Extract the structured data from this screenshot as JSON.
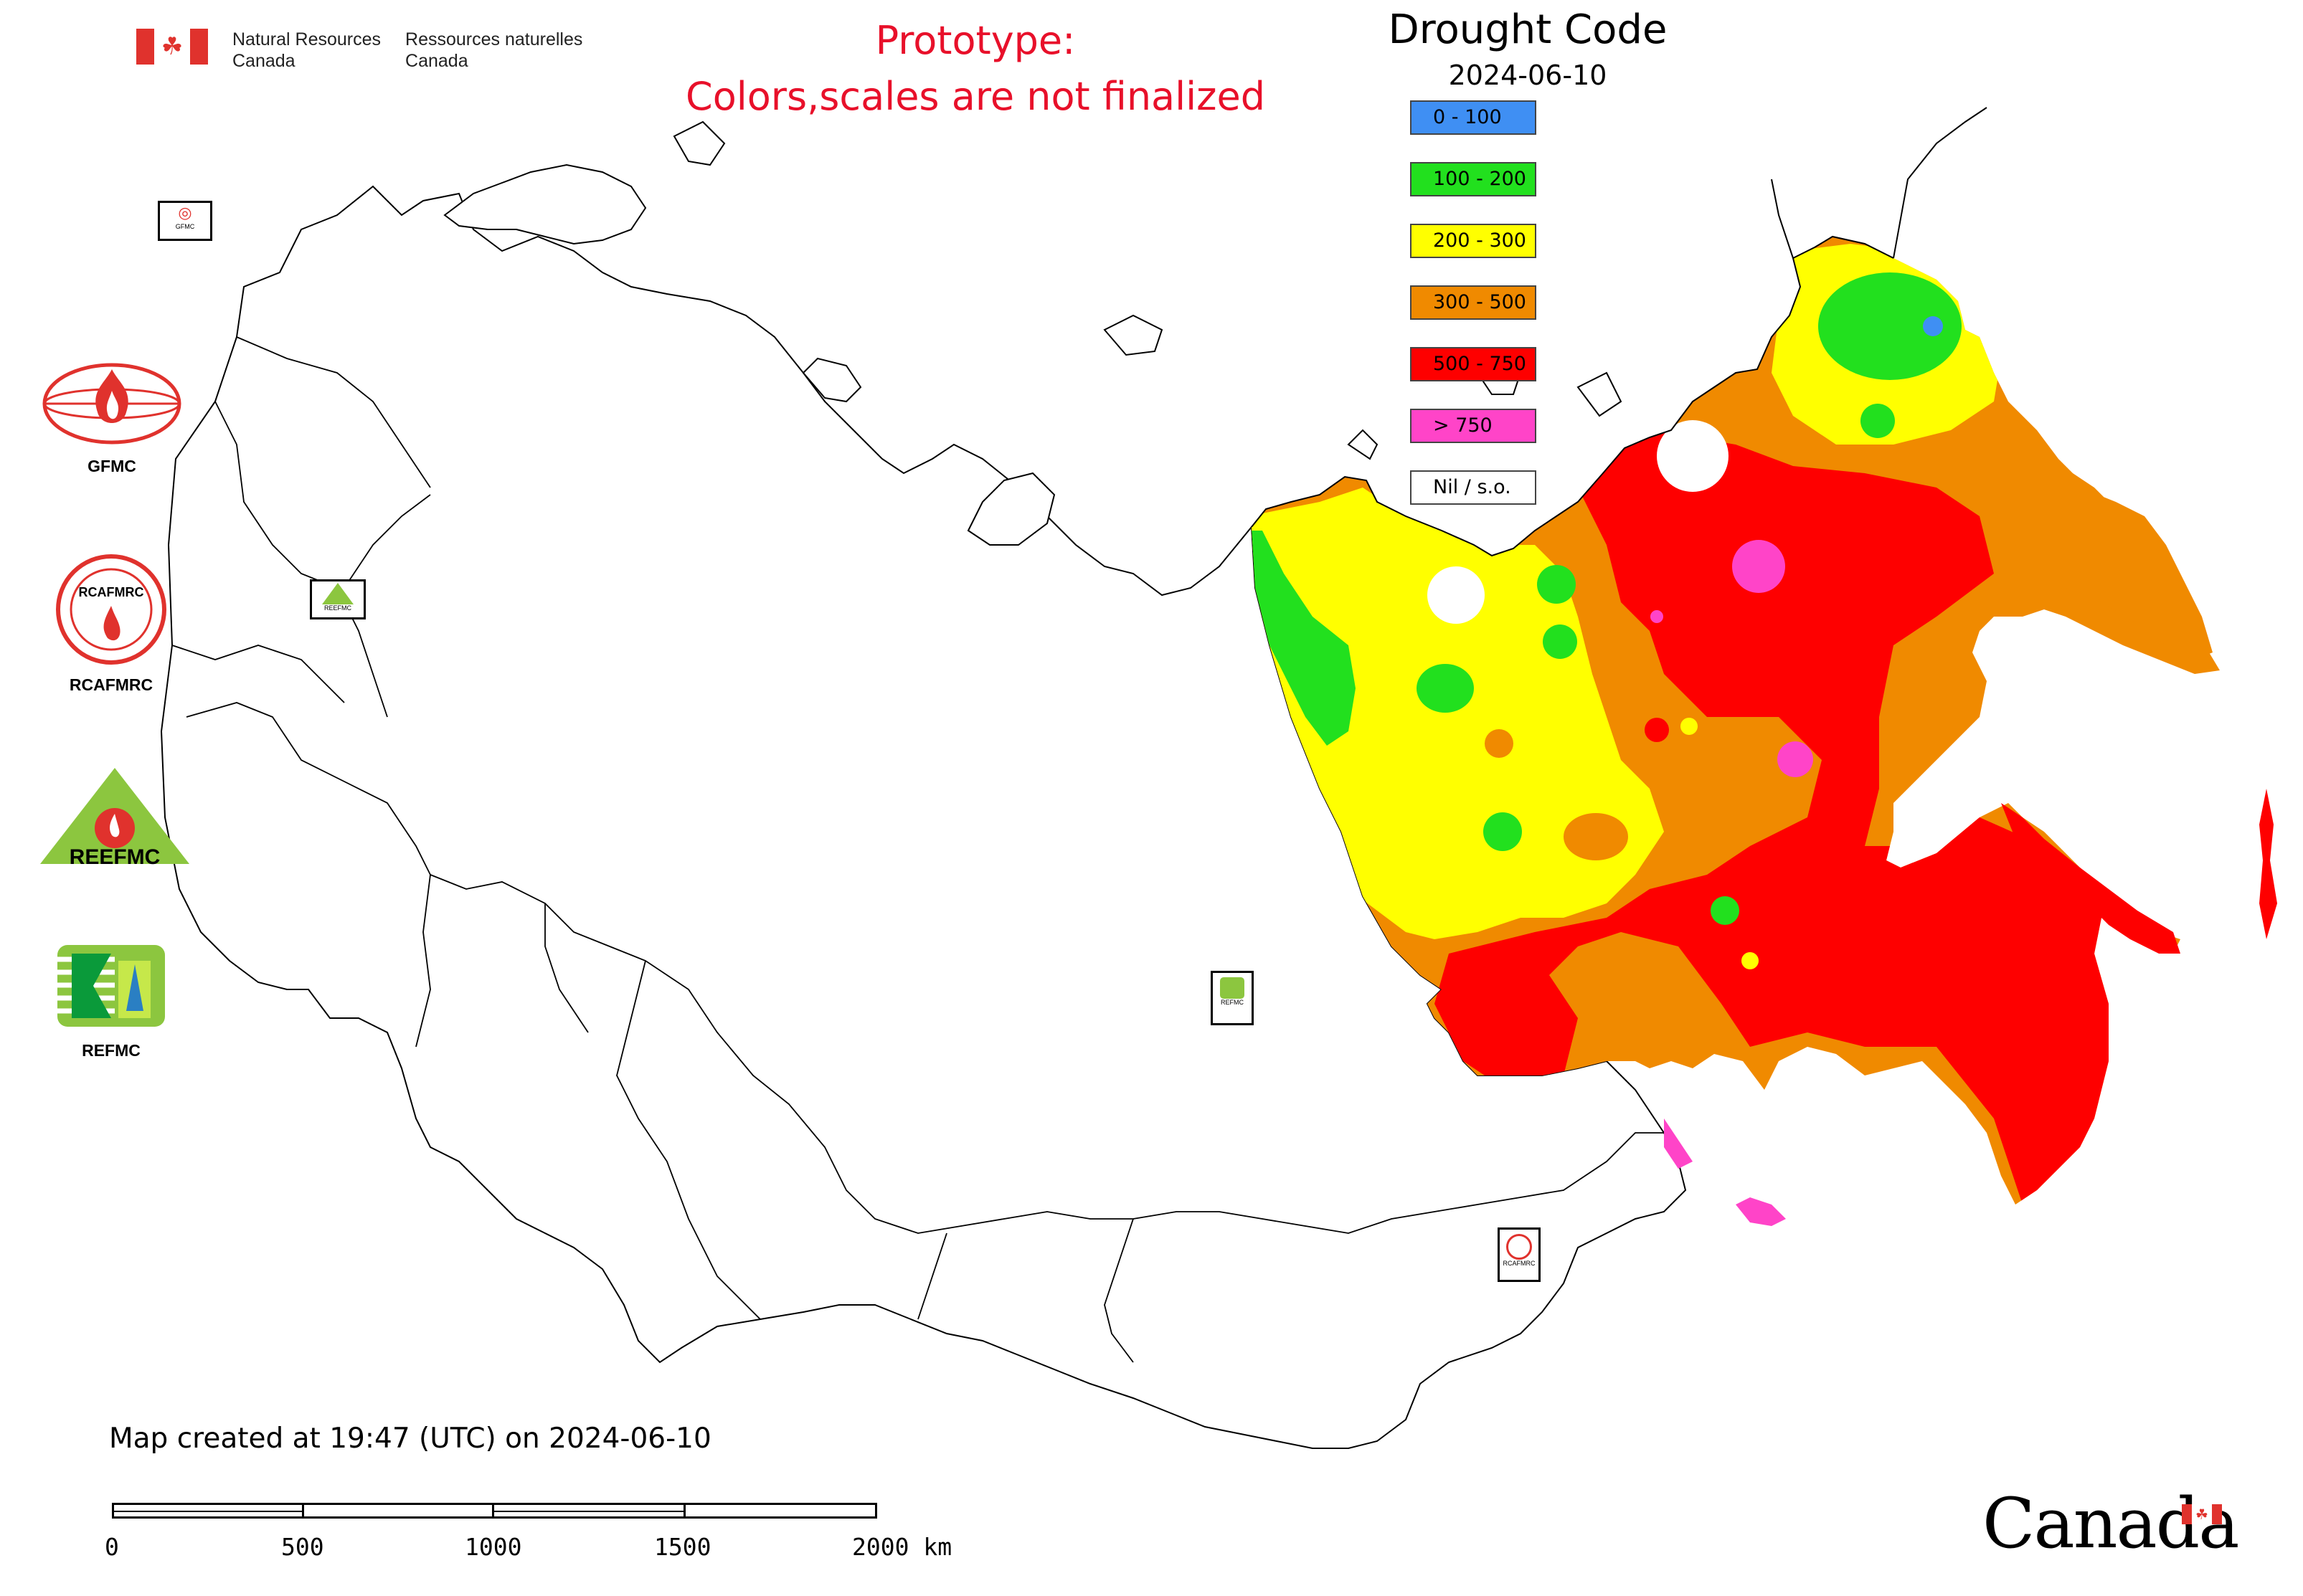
{
  "header": {
    "department_en_line1": "Natural Resources",
    "department_en_line2": "Canada",
    "department_fr_line1": "Ressources naturelles",
    "department_fr_line2": "Canada",
    "maple_leaf_icon": "maple-leaf-icon",
    "prototype_line1": "Prototype:",
    "prototype_line2": "Colors,scales are not finalized",
    "prototype_color": "#e8102a"
  },
  "legend": {
    "title": "Drought Code",
    "date": "2024-06-10",
    "classes": [
      {
        "label": "0 - 100",
        "color": "#3f8ff3"
      },
      {
        "label": "100 - 200",
        "color": "#22e01e"
      },
      {
        "label": "200 - 300",
        "color": "#ffff00"
      },
      {
        "label": "300 - 500",
        "color": "#f08a00"
      },
      {
        "label": "500 - 750",
        "color": "#fe0000"
      },
      {
        "label": "> 750",
        "color": "#ff44c8"
      },
      {
        "label": "Nil / s.o.",
        "color": "#ffffff"
      }
    ]
  },
  "logos": {
    "gfmc": {
      "caption": "GFMC",
      "icon": "gfmc-globe-flame-icon"
    },
    "rcafmrc": {
      "caption": "RCAFMRC",
      "icon": "rcafmrc-seal-icon"
    },
    "reefmc": {
      "caption": "REEFMC",
      "icon": "reefmc-triangle-icon"
    },
    "refmc": {
      "caption": "REFMC",
      "icon": "refmc-sigma-icon"
    }
  },
  "map_tags": {
    "gfmc_tag": "GFMC",
    "reefmc_tag": "REEFMC",
    "refmc_tag": "REFMC",
    "rcafmrc_tag": "RCAFMRC"
  },
  "footer": {
    "created": "Map created at 19:47 (UTC) on 2024-06-10",
    "scale_labels": [
      "0",
      "500",
      "1000",
      "1500",
      "2000 km"
    ],
    "wordmark": "Canada"
  }
}
